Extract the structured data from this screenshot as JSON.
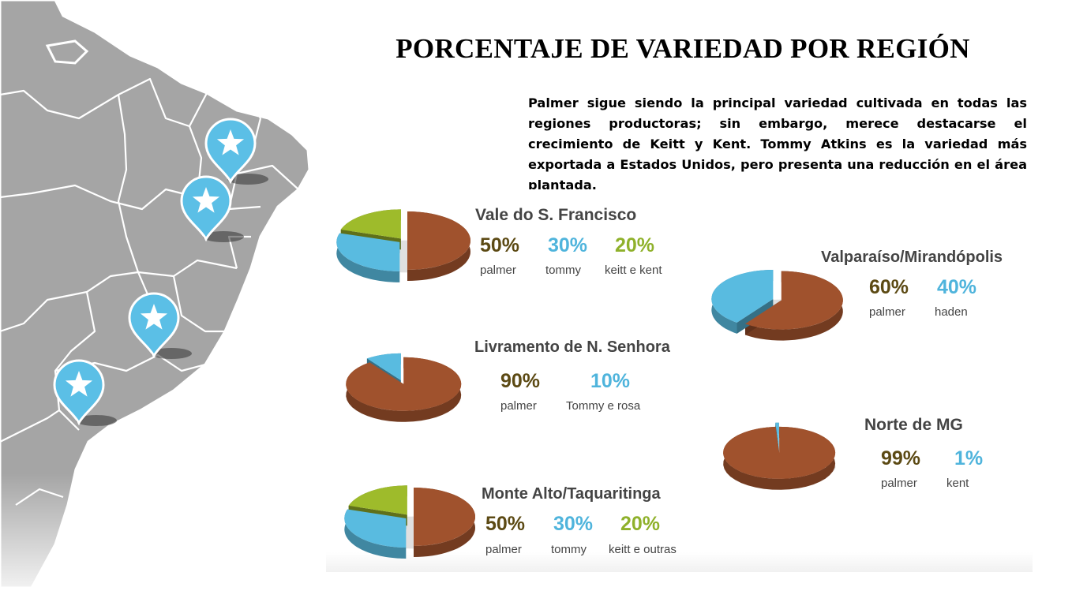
{
  "title": "PORCENTAJE DE VARIEDAD POR REGIÓN",
  "description": "Palmer sigue siendo la principal variedad cultivada en todas las regiones productoras; sin embargo, merece destacarse el crecimiento de Keitt y Kent. Tommy Atkins es la variedad más exportada a Estados Unidos, pero presenta una reducción en el área plantada.",
  "colors": {
    "palmer": "#a0522d",
    "blue": "#59bbe0",
    "green": "#9ebb2b",
    "palmer_text": "#5c4a14",
    "blue_text": "#4fb4dc",
    "green_text": "#8fb12b",
    "map_land": "#a5a5a5",
    "pin": "#5bbfe6"
  },
  "map": {
    "pin_icon": "star-map-pin-icon"
  },
  "chart_data": [
    {
      "type": "pie",
      "title": "Vale do S. Francisco",
      "slices": [
        {
          "label": "palmer",
          "value": 50,
          "display": "50%"
        },
        {
          "label": "tommy",
          "value": 30,
          "display": "30%"
        },
        {
          "label": "keitt e kent",
          "value": 20,
          "display": "20%"
        }
      ]
    },
    {
      "type": "pie",
      "title": "Valparaíso/Mirandópolis",
      "slices": [
        {
          "label": "palmer",
          "value": 60,
          "display": "60%"
        },
        {
          "label": "haden",
          "value": 40,
          "display": "40%"
        }
      ]
    },
    {
      "type": "pie",
      "title": "Livramento de N. Senhora",
      "slices": [
        {
          "label": "palmer",
          "value": 90,
          "display": "90%"
        },
        {
          "label": "Tommy e rosa",
          "value": 10,
          "display": "10%"
        }
      ]
    },
    {
      "type": "pie",
      "title": "Norte de MG",
      "slices": [
        {
          "label": "palmer",
          "value": 99,
          "display": "99%"
        },
        {
          "label": "kent",
          "value": 1,
          "display": "1%"
        }
      ]
    },
    {
      "type": "pie",
      "title": "Monte Alto/Taquaritinga",
      "slices": [
        {
          "label": "palmer",
          "value": 50,
          "display": "50%"
        },
        {
          "label": "tommy",
          "value": 30,
          "display": "30%"
        },
        {
          "label": "keitt e outras",
          "value": 20,
          "display": "20%"
        }
      ]
    }
  ]
}
